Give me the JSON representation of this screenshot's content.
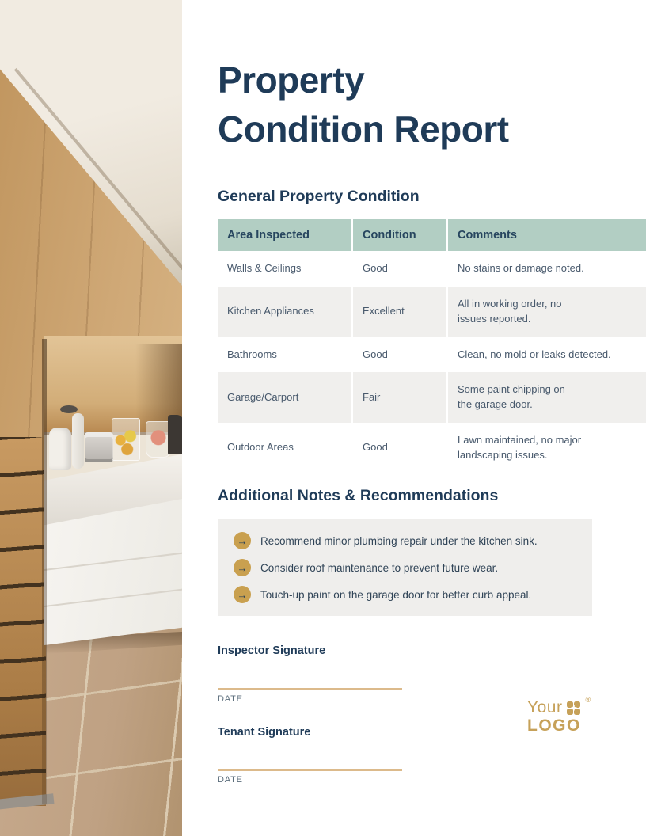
{
  "title": {
    "line1": "Property",
    "line2": "Condition Report"
  },
  "general_section": {
    "heading": "General Property Condition",
    "table": {
      "headers": {
        "area": "Area Inspected",
        "condition": "Condition",
        "comments": "Comments"
      },
      "rows": [
        {
          "area": "Walls & Ceilings",
          "condition": "Good",
          "comments": "No stains or damage noted."
        },
        {
          "area": "Kitchen Appliances",
          "condition": "Excellent",
          "comments": "All in working order, no\nissues reported."
        },
        {
          "area": "Bathrooms",
          "condition": "Good",
          "comments": "Clean, no mold or leaks detected."
        },
        {
          "area": "Garage/Carport",
          "condition": "Fair",
          "comments": "Some paint chipping on\nthe garage door."
        },
        {
          "area": "Outdoor Areas",
          "condition": "Good",
          "comments": "Lawn maintained, no major\nlandscaping issues."
        }
      ]
    }
  },
  "notes_section": {
    "heading": "Additional Notes & Recommendations",
    "items": [
      "Recommend minor plumbing repair under the kitchen sink.",
      "Consider roof maintenance to prevent future wear.",
      "Touch-up paint on the garage door for better curb appeal."
    ]
  },
  "signatures": [
    {
      "label": "Inspector Signature",
      "date_label": "DATE"
    },
    {
      "label": "Tenant Signature",
      "date_label": "DATE"
    }
  ],
  "logo": {
    "line1": "Your",
    "line2": "LOGO",
    "registered": "®"
  },
  "icons": {
    "arrow_right": "→"
  },
  "colors": {
    "navy": "#1f3b58",
    "table_header_sage": "#b2cec3",
    "row_alt_gray": "#f0efed",
    "notes_bg": "#efeeec",
    "bullet_gold": "#c9a04f",
    "signature_line_tan": "#dcba8b",
    "logo_gold": "#c6a159",
    "body_text": "#48596c",
    "date_text": "#5c6e7c"
  }
}
